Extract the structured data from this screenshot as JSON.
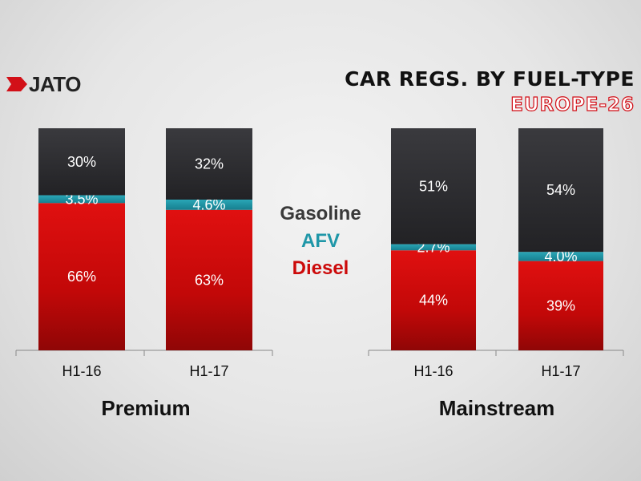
{
  "logo": {
    "text": "JATO"
  },
  "header": {
    "title": "CAR REGS. BY FUEL-TYPE",
    "subtitle": "EUROPE-26"
  },
  "colors": {
    "gasoline": "#2b2b2e",
    "afv": "#1f97a8",
    "diesel": "#d20a0a",
    "brand": "#d21018"
  },
  "legend": {
    "items": [
      {
        "label": "Gasoline",
        "color": "#3a3a3a"
      },
      {
        "label": "AFV",
        "color": "#1f97a8"
      },
      {
        "label": "Diesel",
        "color": "#cc0a0a"
      }
    ]
  },
  "chart_data": [
    {
      "type": "bar",
      "stacked": true,
      "group": "Premium",
      "categories": [
        "H1-16",
        "H1-17"
      ],
      "series": [
        {
          "name": "Diesel",
          "values": [
            66,
            63
          ],
          "labels": [
            "66%",
            "63%"
          ]
        },
        {
          "name": "AFV",
          "values": [
            3.5,
            4.6
          ],
          "labels": [
            "3.5%",
            "4.6%"
          ]
        },
        {
          "name": "Gasoline",
          "values": [
            30,
            32
          ],
          "labels": [
            "30%",
            "32%"
          ]
        }
      ],
      "ylim": [
        0,
        100
      ]
    },
    {
      "type": "bar",
      "stacked": true,
      "group": "Mainstream",
      "categories": [
        "H1-16",
        "H1-17"
      ],
      "series": [
        {
          "name": "Diesel",
          "values": [
            44,
            39
          ],
          "labels": [
            "44%",
            "39%"
          ]
        },
        {
          "name": "AFV",
          "values": [
            2.7,
            4.0
          ],
          "labels": [
            "2.7%",
            "4.0%"
          ]
        },
        {
          "name": "Gasoline",
          "values": [
            51,
            54
          ],
          "labels": [
            "51%",
            "54%"
          ]
        }
      ],
      "ylim": [
        0,
        100
      ]
    }
  ]
}
